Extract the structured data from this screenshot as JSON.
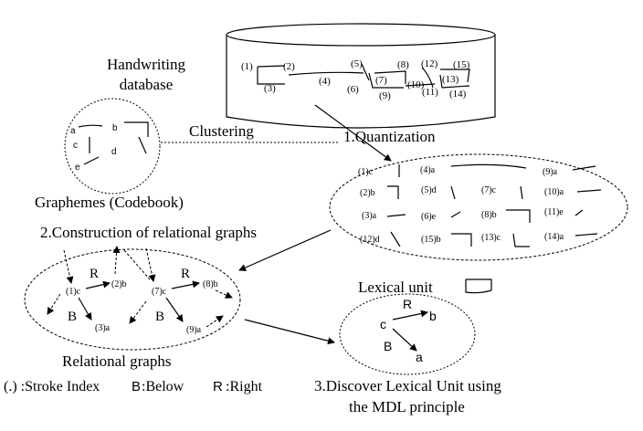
{
  "database": {
    "label_line1": "Handwriting",
    "label_line2": "database",
    "stroke_indices": [
      "(1)",
      "(2)",
      "(3)",
      "(4)",
      "(5)",
      "(6)",
      "(7)",
      "(8)",
      "(9)",
      "(10)",
      "(11)",
      "(12)",
      "(13)",
      "(14)",
      "(15)"
    ]
  },
  "codebook": {
    "labels": [
      "a",
      "b",
      "c",
      "d",
      "e"
    ],
    "caption": "Graphemes (Codebook)"
  },
  "clustering_label": "Clustering",
  "quantization": {
    "title": "1.Quantization",
    "items": [
      "(1)c",
      "(4)a",
      "(9)a",
      "(2)b",
      "(5)d",
      "(7)c",
      "(10)a",
      "(3)a",
      "(6)e",
      "(8)b",
      "(11)e",
      "(12)d",
      "(15)b",
      "(13)c",
      "(14)a"
    ]
  },
  "construction_label": "2.Construction of relational graphs",
  "relational": {
    "caption": "Relational graphs",
    "nodes": [
      "(1)c",
      "(2)b",
      "(3)a",
      "(7)c",
      "(8)b",
      "(9)a"
    ],
    "edge_labels": [
      "R",
      "B",
      "R",
      "B"
    ]
  },
  "legend": {
    "index": "(.) :Stroke Index",
    "below_key": "B",
    "below_text": ":Below",
    "right_key": "R",
    "right_text": ":Right"
  },
  "lexical": {
    "title": "Lexical unit",
    "nodes": [
      "c",
      "b",
      "a"
    ],
    "edge_labels": [
      "R",
      "B"
    ]
  },
  "discover": {
    "line1": "3.Discover Lexical Unit using",
    "line2": "the MDL principle"
  }
}
